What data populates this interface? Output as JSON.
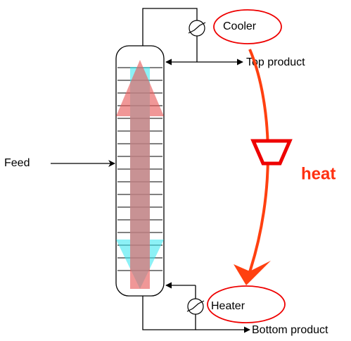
{
  "labels": {
    "cooler": "Cooler",
    "top_product": "Top product",
    "feed": "Feed",
    "heat": "heat",
    "heater": "Heater",
    "bottom_product": "Bottom product"
  }
}
